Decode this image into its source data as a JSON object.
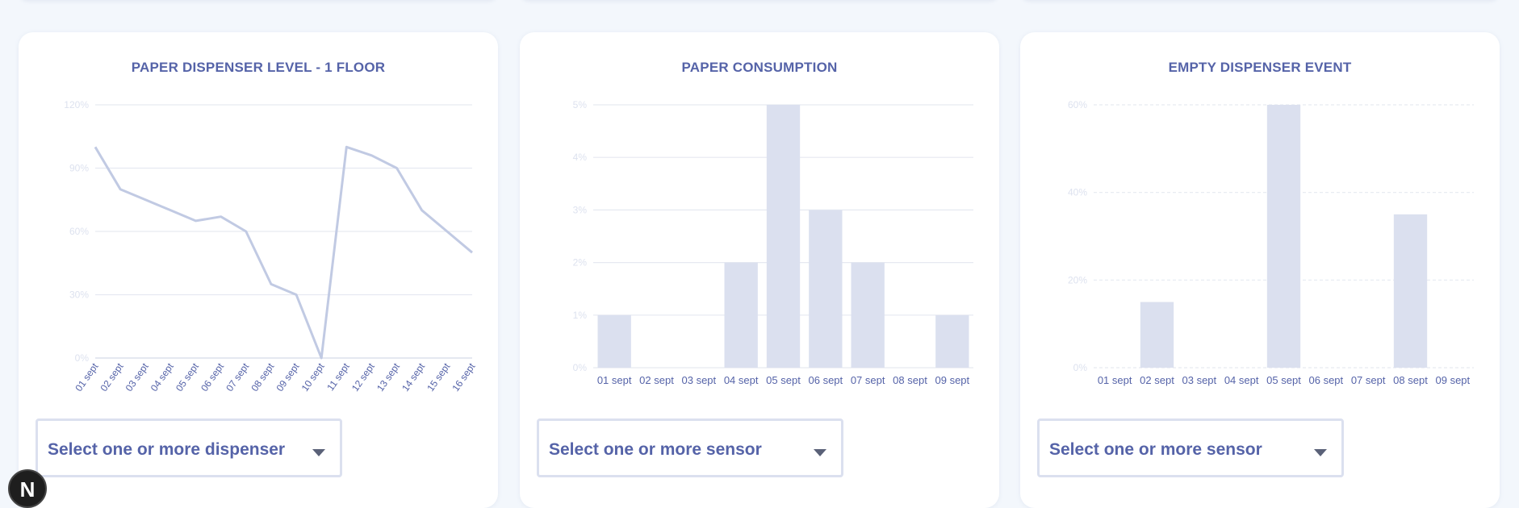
{
  "cards": [
    {
      "title": "PAPER DISPENSER LEVEL - 1 FLOOR",
      "select_placeholder": "Select one or more dispenser"
    },
    {
      "title": "PAPER CONSUMPTION",
      "select_placeholder": "Select one or more sensor"
    },
    {
      "title": "EMPTY DISPENSER EVENT",
      "select_placeholder": "Select one or more sensor"
    }
  ],
  "chart_data": [
    {
      "type": "line",
      "title": "PAPER DISPENSER LEVEL - 1 FLOOR",
      "categories": [
        "01 sept",
        "02 sept",
        "03 sept",
        "04 sept",
        "05 sept",
        "06 sept",
        "07 sept",
        "08 sept",
        "09 sept",
        "10 sept",
        "11 sept",
        "12 sept",
        "13 sept",
        "14 sept",
        "15 sept",
        "16 sept"
      ],
      "values": [
        100,
        80,
        75,
        70,
        65,
        67,
        60,
        35,
        30,
        0,
        100,
        96,
        90,
        70,
        60,
        50
      ],
      "y_ticks": [
        "0%",
        "30%",
        "60%",
        "90%",
        "120%"
      ],
      "ylim": [
        0,
        120
      ],
      "grid": true,
      "line_color": "#c1cae3"
    },
    {
      "type": "bar",
      "title": "PAPER CONSUMPTION",
      "categories": [
        "01 sept",
        "02 sept",
        "03 sept",
        "04 sept",
        "05 sept",
        "06 sept",
        "07 sept",
        "08 sept",
        "09 sept"
      ],
      "values": [
        1,
        0,
        0,
        2,
        5,
        3,
        2,
        0,
        1
      ],
      "y_ticks": [
        "0%",
        "1%",
        "2%",
        "3%",
        "4%",
        "5%"
      ],
      "ylim": [
        0,
        5
      ],
      "grid": true,
      "bar_color": "#dbe0ef"
    },
    {
      "type": "bar",
      "title": "EMPTY DISPENSER EVENT",
      "categories": [
        "01 sept",
        "02 sept",
        "03 sept",
        "04 sept",
        "05 sept",
        "06 sept",
        "07 sept",
        "08 sept",
        "09 sept"
      ],
      "values": [
        0,
        15,
        0,
        0,
        60,
        0,
        0,
        35,
        0
      ],
      "y_ticks": [
        "0%",
        "20%",
        "40%",
        "60%"
      ],
      "ylim": [
        0,
        60
      ],
      "grid": "dashed",
      "bar_color": "#dbe0ef"
    }
  ],
  "avatar_letter": "N",
  "colors": {
    "accent": "#5563a8",
    "tick_text": "#dde2ef",
    "grid": "#e6e9f1",
    "background": "#f3f7fc"
  }
}
